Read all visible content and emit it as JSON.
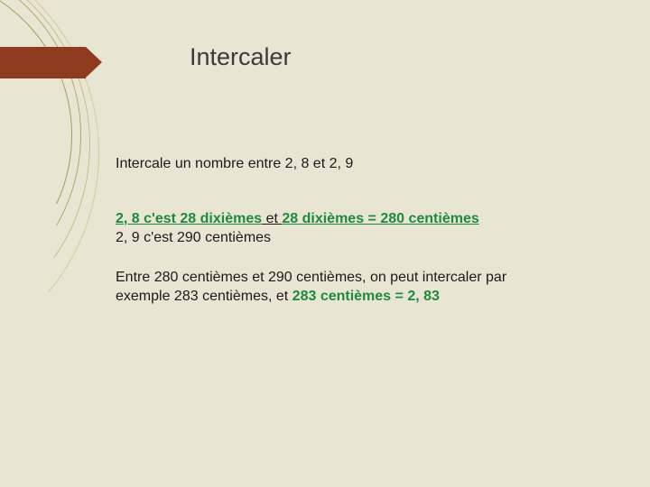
{
  "title": "Intercaler",
  "para1": "Intercale un nombre entre 2, 8 et 2, 9",
  "p2_a": "2, 8 c'est 28 dixièmes",
  "p2_b": " et ",
  "p2_c": "28 dixièmes = 280 centièmes",
  "p2_line2": "2, 9 c'est 290 centièmes",
  "p3_a": "Entre 280  centièmes et 290 centièmes, on peut intercaler par exemple 283 centièmes, et ",
  "p3_b": "283 centièmes = 2, 83",
  "colors": {
    "background": "#e8e6d2",
    "tab": "#8f3b1f",
    "green": "#1e8a3d",
    "text": "#1a1a1a"
  }
}
